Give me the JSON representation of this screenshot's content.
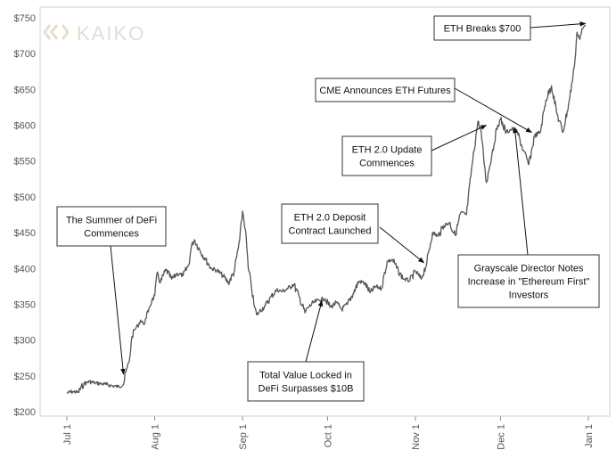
{
  "chart_data": {
    "type": "line",
    "title": "",
    "xlabel": "",
    "ylabel": "",
    "ylim": [
      200,
      750
    ],
    "y_ticks": [
      "$200",
      "$250",
      "$300",
      "$350",
      "$400",
      "$450",
      "$500",
      "$550",
      "$600",
      "$650",
      "$700",
      "$750"
    ],
    "y_tick_values": [
      200,
      250,
      300,
      350,
      400,
      450,
      500,
      550,
      600,
      650,
      700,
      750
    ],
    "x_ticks": [
      "Jul 1",
      "Aug 1",
      "Sep 1",
      "Oct 1",
      "Nov 1",
      "Dec 1",
      "Jan 1"
    ],
    "x_tick_dates": [
      "2020-07-01",
      "2020-08-01",
      "2020-09-01",
      "2020-10-01",
      "2020-11-01",
      "2020-12-01",
      "2021-01-01"
    ],
    "grid": false,
    "series": [
      {
        "color": "#555555",
        "points": [
          [
            "2020-07-01",
            226
          ],
          [
            "2020-07-03",
            228
          ],
          [
            "2020-07-05",
            227
          ],
          [
            "2020-07-07",
            239
          ],
          [
            "2020-07-09",
            242
          ],
          [
            "2020-07-11",
            240
          ],
          [
            "2020-07-13",
            239
          ],
          [
            "2020-07-15",
            238
          ],
          [
            "2020-07-17",
            236
          ],
          [
            "2020-07-19",
            235
          ],
          [
            "2020-07-21",
            238
          ],
          [
            "2020-07-22",
            258
          ],
          [
            "2020-07-23",
            270
          ],
          [
            "2020-07-24",
            305
          ],
          [
            "2020-07-25",
            315
          ],
          [
            "2020-07-26",
            320
          ],
          [
            "2020-07-27",
            328
          ],
          [
            "2020-07-28",
            322
          ],
          [
            "2020-07-29",
            330
          ],
          [
            "2020-07-30",
            345
          ],
          [
            "2020-07-31",
            355
          ],
          [
            "2020-08-01",
            362
          ],
          [
            "2020-08-02",
            395
          ],
          [
            "2020-08-03",
            380
          ],
          [
            "2020-08-05",
            398
          ],
          [
            "2020-08-07",
            385
          ],
          [
            "2020-08-09",
            393
          ],
          [
            "2020-08-11",
            390
          ],
          [
            "2020-08-13",
            405
          ],
          [
            "2020-08-14",
            432
          ],
          [
            "2020-08-15",
            440
          ],
          [
            "2020-08-17",
            425
          ],
          [
            "2020-08-19",
            412
          ],
          [
            "2020-08-21",
            400
          ],
          [
            "2020-08-23",
            397
          ],
          [
            "2020-08-25",
            390
          ],
          [
            "2020-08-27",
            380
          ],
          [
            "2020-08-29",
            395
          ],
          [
            "2020-08-31",
            440
          ],
          [
            "2020-09-01",
            480
          ],
          [
            "2020-09-02",
            455
          ],
          [
            "2020-09-03",
            400
          ],
          [
            "2020-09-04",
            378
          ],
          [
            "2020-09-05",
            350
          ],
          [
            "2020-09-06",
            335
          ],
          [
            "2020-09-07",
            340
          ],
          [
            "2020-09-09",
            348
          ],
          [
            "2020-09-11",
            360
          ],
          [
            "2020-09-13",
            370
          ],
          [
            "2020-09-15",
            368
          ],
          [
            "2020-09-17",
            372
          ],
          [
            "2020-09-19",
            378
          ],
          [
            "2020-09-21",
            360
          ],
          [
            "2020-09-23",
            338
          ],
          [
            "2020-09-24",
            345
          ],
          [
            "2020-09-26",
            352
          ],
          [
            "2020-09-28",
            356
          ],
          [
            "2020-09-30",
            358
          ],
          [
            "2020-10-02",
            346
          ],
          [
            "2020-10-04",
            352
          ],
          [
            "2020-10-06",
            343
          ],
          [
            "2020-10-08",
            350
          ],
          [
            "2020-10-10",
            365
          ],
          [
            "2020-10-12",
            382
          ],
          [
            "2020-10-14",
            380
          ],
          [
            "2020-10-16",
            366
          ],
          [
            "2020-10-18",
            375
          ],
          [
            "2020-10-20",
            372
          ],
          [
            "2020-10-22",
            410
          ],
          [
            "2020-10-24",
            412
          ],
          [
            "2020-10-26",
            395
          ],
          [
            "2020-10-28",
            385
          ],
          [
            "2020-10-30",
            383
          ],
          [
            "2020-11-01",
            396
          ],
          [
            "2020-11-03",
            385
          ],
          [
            "2020-11-05",
            408
          ],
          [
            "2020-11-07",
            450
          ],
          [
            "2020-11-09",
            445
          ],
          [
            "2020-11-11",
            460
          ],
          [
            "2020-11-13",
            464
          ],
          [
            "2020-11-15",
            446
          ],
          [
            "2020-11-17",
            478
          ],
          [
            "2020-11-19",
            475
          ],
          [
            "2020-11-21",
            545
          ],
          [
            "2020-11-23",
            605
          ],
          [
            "2020-11-24",
            595
          ],
          [
            "2020-11-26",
            520
          ],
          [
            "2020-11-28",
            560
          ],
          [
            "2020-11-30",
            600
          ],
          [
            "2020-12-01",
            608
          ],
          [
            "2020-12-03",
            590
          ],
          [
            "2020-12-05",
            595
          ],
          [
            "2020-12-07",
            590
          ],
          [
            "2020-12-09",
            565
          ],
          [
            "2020-12-11",
            545
          ],
          [
            "2020-12-13",
            585
          ],
          [
            "2020-12-15",
            590
          ],
          [
            "2020-12-17",
            635
          ],
          [
            "2020-12-19",
            655
          ],
          [
            "2020-12-21",
            615
          ],
          [
            "2020-12-23",
            590
          ],
          [
            "2020-12-25",
            628
          ],
          [
            "2020-12-27",
            680
          ],
          [
            "2020-12-28",
            730
          ],
          [
            "2020-12-29",
            720
          ],
          [
            "2020-12-30",
            735
          ],
          [
            "2020-12-31",
            740
          ]
        ]
      }
    ],
    "annotations": [
      {
        "lines": [
          "ETH Breaks $700"
        ],
        "target": [
          "2020-12-31",
          742
        ]
      },
      {
        "lines": [
          "CME Announces ETH Futures"
        ],
        "target": [
          "2020-12-12",
          590
        ]
      },
      {
        "lines": [
          "ETH 2.0 Update",
          "Commences"
        ],
        "target": [
          "2020-11-26",
          600
        ]
      },
      {
        "lines": [
          "ETH 2.0 Deposit",
          "Contract Launched"
        ],
        "target": [
          "2020-11-04",
          408
        ]
      },
      {
        "lines": [
          "The Summer of DeFi",
          "Commences"
        ],
        "target": [
          "2020-07-21",
          252
        ]
      },
      {
        "lines": [
          "Total Value Locked in",
          "DeFi Surpasses $10B"
        ],
        "target": [
          "2020-09-29",
          355
        ]
      },
      {
        "lines": [
          "Grayscale Director Notes",
          "Increase in \"Ethereum First\"",
          "Investors"
        ],
        "target": [
          "2020-12-06",
          597
        ]
      }
    ]
  },
  "logo": {
    "text": "KAIKO",
    "color": "#e3ddd3"
  }
}
